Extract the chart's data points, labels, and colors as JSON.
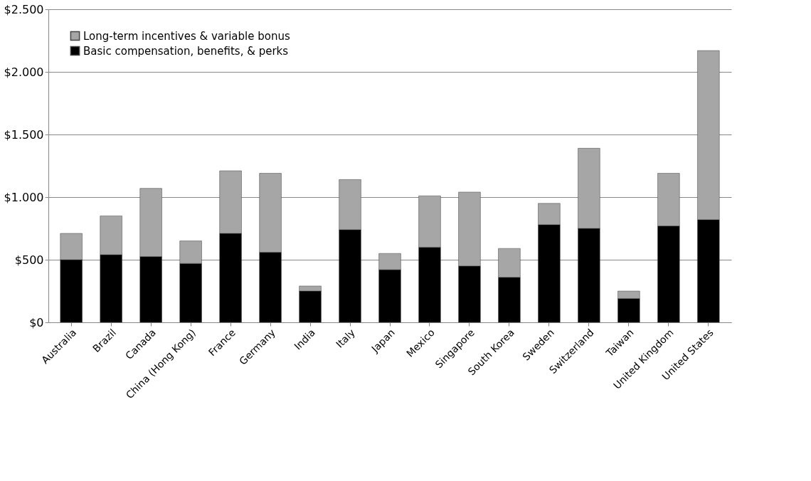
{
  "chart_data": {
    "type": "bar",
    "stacked": true,
    "categories": [
      "Australia",
      "Brazil",
      "Canada",
      "China (Hong Kong)",
      "France",
      "Germany",
      "India",
      "Italy",
      "Japan",
      "Mexico",
      "Singapore",
      "South Korea",
      "Sweden",
      "Switzerland",
      "Taiwan",
      "United Kingdom",
      "United States"
    ],
    "series": [
      {
        "name": "Basic compensation, benefits, & perks",
        "color": "#000000",
        "values": [
          500,
          540,
          525,
          470,
          710,
          560,
          250,
          740,
          420,
          600,
          450,
          360,
          780,
          750,
          190,
          770,
          820
        ]
      },
      {
        "name": "Long-term incentives & variable bonus",
        "color": "#a6a6a6",
        "values": [
          210,
          310,
          545,
          180,
          500,
          630,
          40,
          400,
          130,
          410,
          590,
          230,
          170,
          640,
          60,
          420,
          1350
        ]
      }
    ],
    "ylim": [
      0,
      2500
    ],
    "yticks": [
      {
        "value": 0,
        "label": "$0"
      },
      {
        "value": 500,
        "label": "$500"
      },
      {
        "value": 1000,
        "label": "$1.000"
      },
      {
        "value": 1500,
        "label": "$1.500"
      },
      {
        "value": 2000,
        "label": "$2.000"
      },
      {
        "value": 2500,
        "label": "$2.500"
      }
    ],
    "grid": "y",
    "legend": "top left"
  }
}
